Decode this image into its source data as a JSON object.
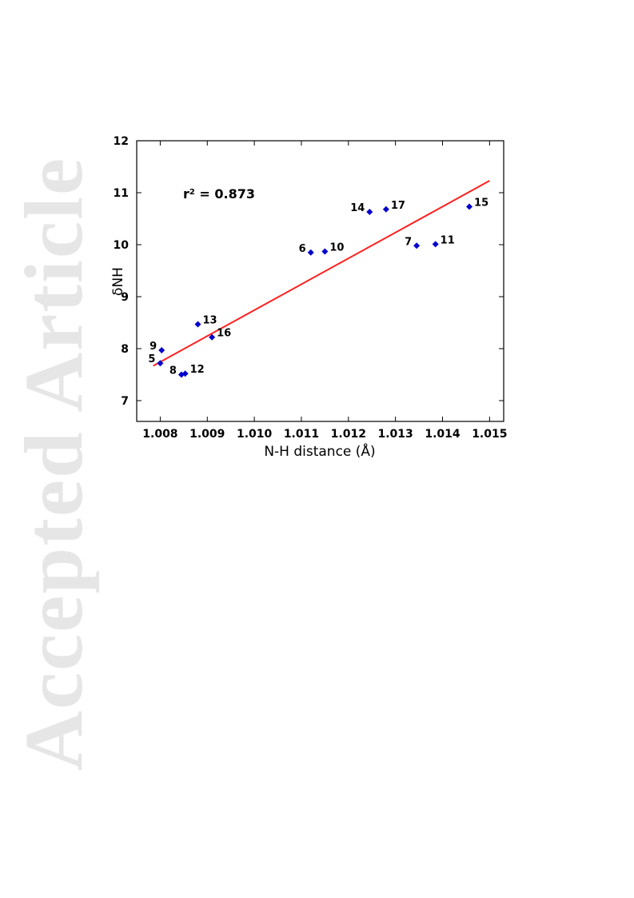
{
  "watermark": "Accepted Article",
  "chart_data": {
    "type": "scatter",
    "title": "",
    "xlabel": "N-H distance (Å)",
    "ylabel": "δNH",
    "xlim": [
      1.0075,
      1.0153
    ],
    "ylim": [
      6.6,
      12
    ],
    "xticks": [
      "1.008",
      "1.009",
      "1.010",
      "1.011",
      "1.012",
      "1.013",
      "1.014",
      "1.015"
    ],
    "yticks": [
      "7",
      "8",
      "9",
      "10",
      "11",
      "12"
    ],
    "grid": false,
    "legend": "none",
    "annotation": {
      "prefix": "r",
      "sup": "2",
      "text": " = 0.873"
    },
    "points": [
      {
        "label": "5",
        "x": 1.008,
        "y": 7.72,
        "label_side": "left"
      },
      {
        "label": "9",
        "x": 1.00803,
        "y": 7.97,
        "label_side": "left"
      },
      {
        "label": "8",
        "x": 1.00845,
        "y": 7.5,
        "label_side": "left"
      },
      {
        "label": "12",
        "x": 1.00853,
        "y": 7.52,
        "label_side": "right"
      },
      {
        "label": "13",
        "x": 1.0088,
        "y": 8.47,
        "label_side": "right"
      },
      {
        "label": "16",
        "x": 1.0091,
        "y": 8.22,
        "label_side": "right"
      },
      {
        "label": "6",
        "x": 1.0112,
        "y": 9.85,
        "label_side": "left"
      },
      {
        "label": "10",
        "x": 1.0115,
        "y": 9.87,
        "label_side": "right"
      },
      {
        "label": "14",
        "x": 1.01245,
        "y": 10.63,
        "label_side": "left"
      },
      {
        "label": "17",
        "x": 1.0128,
        "y": 10.68,
        "label_side": "right"
      },
      {
        "label": "7",
        "x": 1.01345,
        "y": 9.98,
        "label_side": "left"
      },
      {
        "label": "11",
        "x": 1.01385,
        "y": 10.01,
        "label_side": "right"
      },
      {
        "label": "15",
        "x": 1.01457,
        "y": 10.73,
        "label_side": "right"
      }
    ],
    "fit_line": {
      "x": [
        1.00785,
        1.015
      ],
      "y": [
        7.67,
        11.23
      ]
    },
    "colors": {
      "points": "#0000cc",
      "fit_line": "#ff2020",
      "axes": "#000000"
    }
  }
}
